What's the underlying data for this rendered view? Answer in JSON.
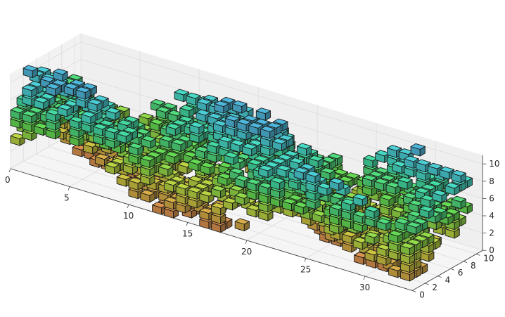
{
  "chart_data": {
    "type": "voxel-3d",
    "title": "",
    "xlabel": "",
    "ylabel": "",
    "zlabel": "",
    "x_ticks": [
      "0",
      "5",
      "10",
      "15",
      "20",
      "25",
      "30"
    ],
    "y_ticks": [
      "0",
      "2",
      "4",
      "6",
      "8",
      "10"
    ],
    "z_ticks": [
      "0",
      "2",
      "4",
      "6",
      "8",
      "10"
    ],
    "xlim": [
      0,
      34
    ],
    "ylim": [
      0,
      11
    ],
    "zlim": [
      0,
      11
    ],
    "grid": true,
    "colormap_stops": [
      "#cf8a4a",
      "#c9b33e",
      "#a9cf3f",
      "#5fcf4e",
      "#3fcf8f",
      "#44cfc6",
      "#4aaed0"
    ],
    "edge_color": "#1a1a1a",
    "pane_color": "#f2f2f2",
    "grid_color": "#dcdcdc"
  }
}
